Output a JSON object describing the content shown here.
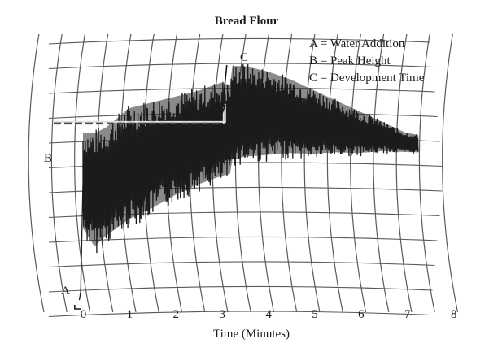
{
  "chart_data": {
    "type": "line",
    "title": "Bread Flour",
    "xlabel": "Time (Minutes)",
    "ylabel": "",
    "x_ticks": [
      "0",
      "1",
      "2",
      "3",
      "4",
      "5",
      "6",
      "7",
      "8"
    ],
    "xlim": [
      0,
      8
    ],
    "grid": true,
    "legend_position": "top-right",
    "legend": [
      "A = Water Addition",
      "B = Peak Height",
      "C = Development Time"
    ],
    "markers": {
      "A": {
        "label": "A",
        "meaning": "Water Addition",
        "x": 0
      },
      "B": {
        "label": "B",
        "meaning": "Peak Height"
      },
      "C": {
        "label": "C",
        "meaning": "Development Time",
        "x": 3.2
      }
    },
    "series": [
      {
        "x": [
          -0.1,
          0.0,
          0.25,
          0.5,
          1.0,
          1.5,
          2.0,
          2.5,
          3.0,
          3.2,
          3.25,
          3.5,
          4.0,
          4.5,
          5.0,
          5.5,
          6.0,
          6.5,
          7.0,
          7.3
        ],
        "upper": [
          0.05,
          0.64,
          0.64,
          0.66,
          0.73,
          0.75,
          0.77,
          0.79,
          0.82,
          0.81,
          0.88,
          0.88,
          0.86,
          0.83,
          0.79,
          0.75,
          0.71,
          0.67,
          0.63,
          0.62
        ],
        "lower": [
          0.05,
          0.25,
          0.18,
          0.22,
          0.28,
          0.32,
          0.37,
          0.41,
          0.44,
          0.45,
          0.5,
          0.51,
          0.52,
          0.53,
          0.53,
          0.54,
          0.54,
          0.55,
          0.55,
          0.55
        ],
        "mid": [
          0.05,
          0.45,
          0.41,
          0.44,
          0.5,
          0.54,
          0.57,
          0.6,
          0.63,
          0.63,
          0.69,
          0.7,
          0.69,
          0.68,
          0.66,
          0.64,
          0.62,
          0.61,
          0.59,
          0.58
        ]
      }
    ],
    "peak_height_level": 0.665
  }
}
